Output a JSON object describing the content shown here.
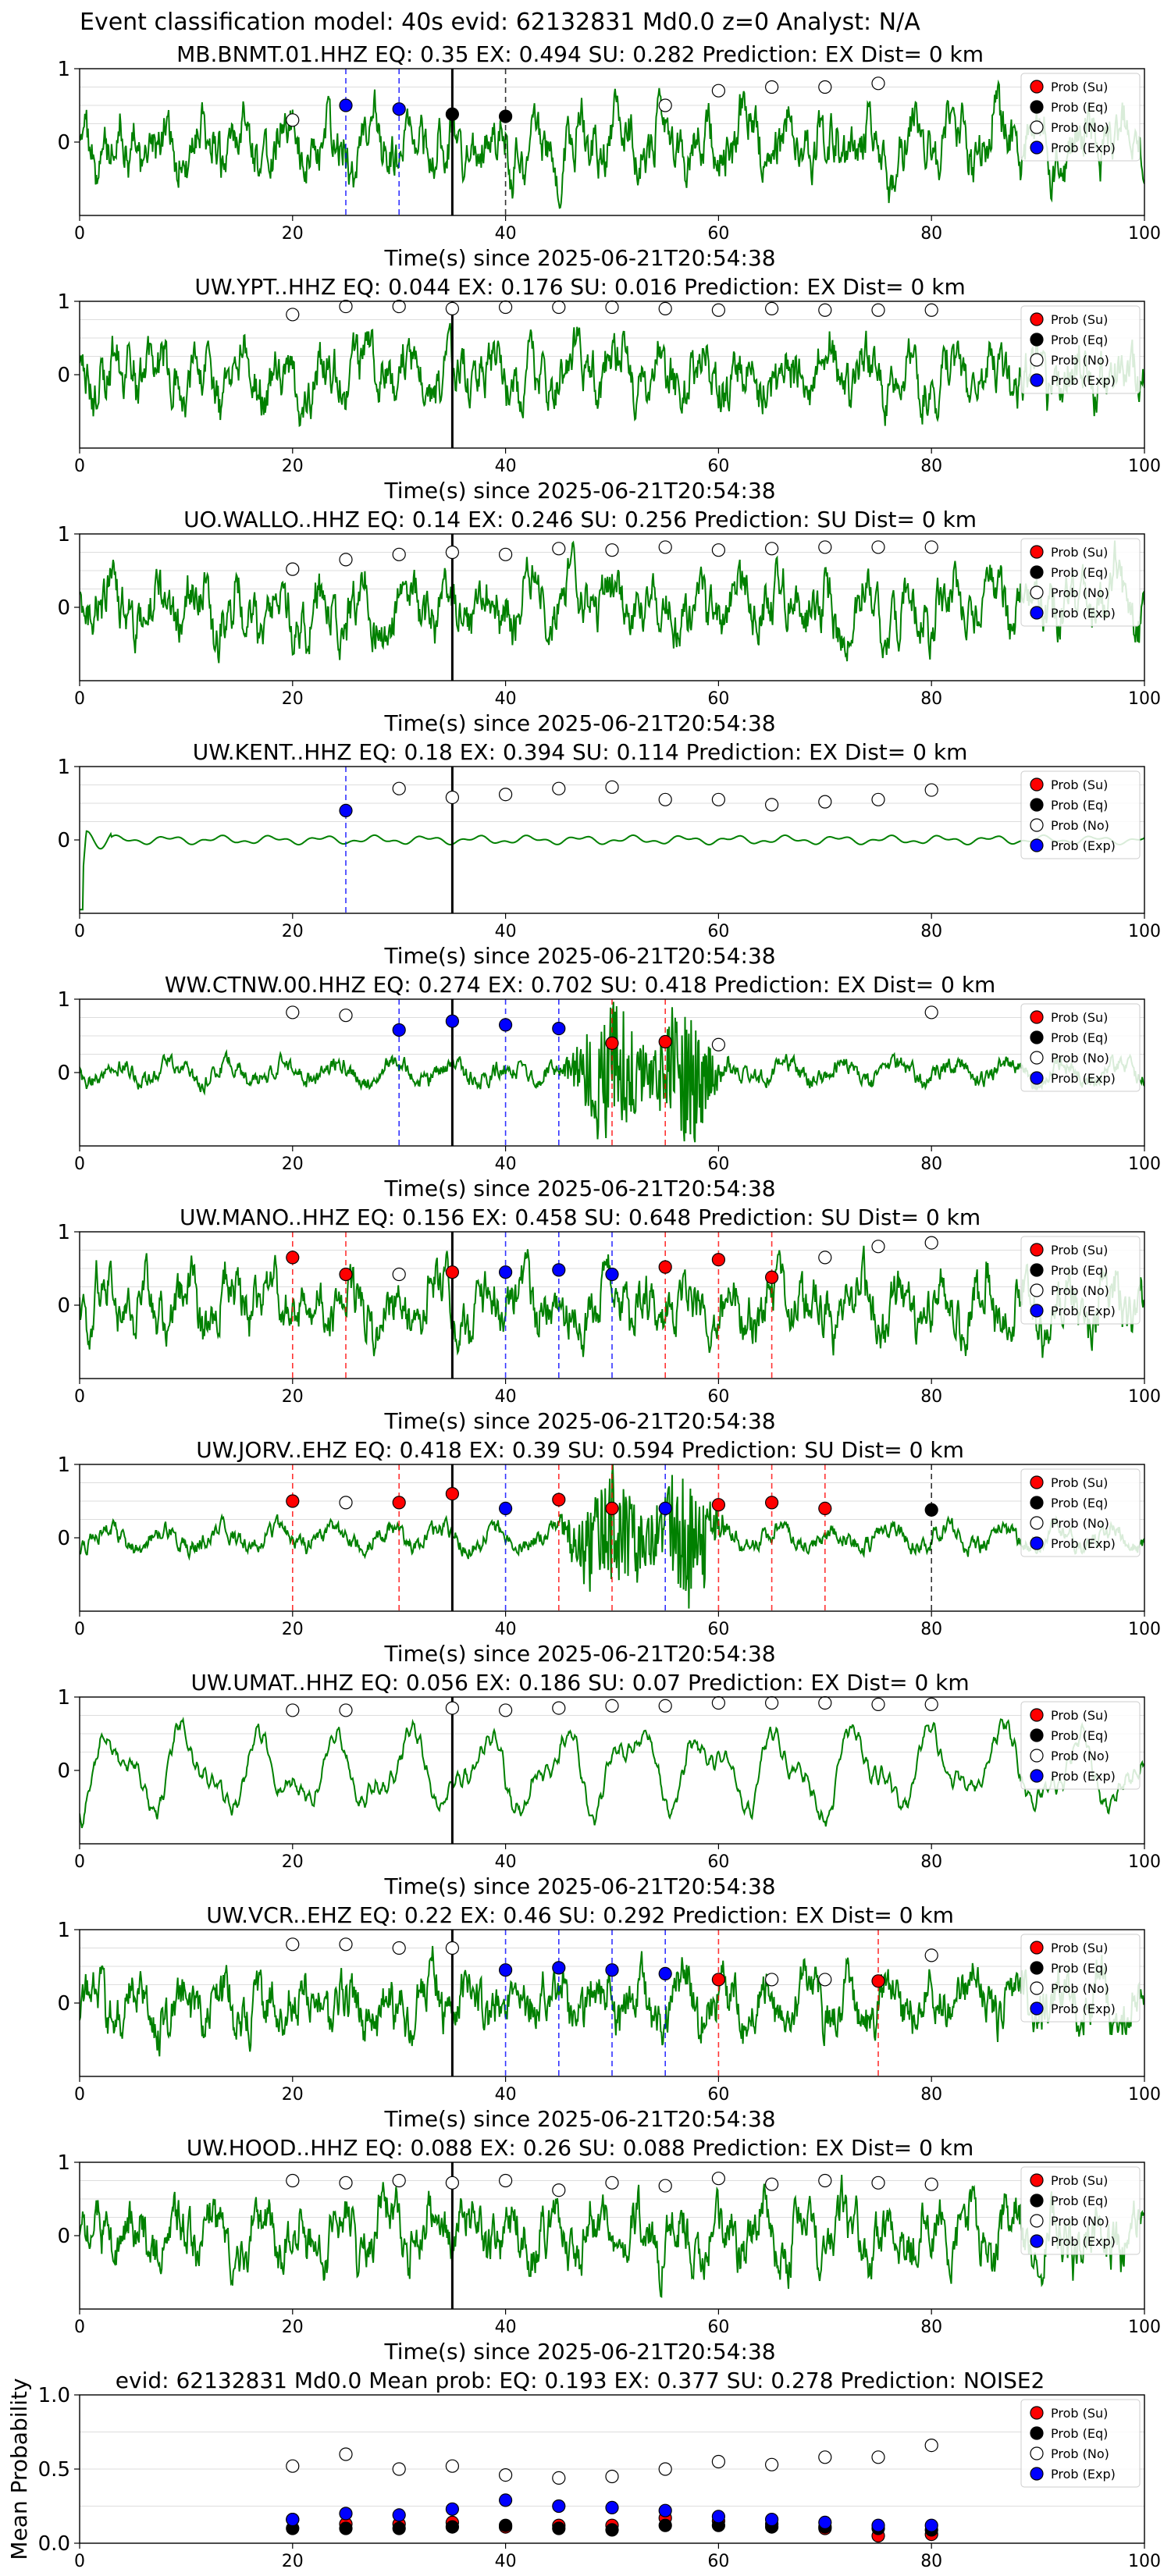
{
  "suptitle": "Event classification model: 40s evid: 62132831 Md0.0 z=0 Analyst: N/A",
  "colors": {
    "waveform": "#008000",
    "su": "#ff0000",
    "eq": "#000000",
    "no": "#ffffff",
    "exp": "#0000ff",
    "origin_line": "#000000"
  },
  "legend_labels": [
    "Prob (Su)",
    "Prob (Eq)",
    "Prob (No)",
    "Prob (Exp)"
  ],
  "chart_data": [
    {
      "type": "line",
      "title": "MB.BNMT.01.HHZ   EQ: 0.35   EX: 0.494   SU: 0.282   Prediction: EX    Dist= 0 km",
      "xlabel": "Time(s) since 2025-06-21T20:54:38",
      "xlim": [
        0,
        100
      ],
      "ylim": [
        -1,
        1
      ],
      "xticks": [
        0,
        20,
        40,
        60,
        80,
        100
      ],
      "yticks": [
        0,
        1
      ],
      "origin_time": 35,
      "legend": "right",
      "waveform_style": "noisy",
      "probabilities": [
        {
          "t": 20,
          "class": "No",
          "p": 0.3
        },
        {
          "t": 25,
          "class": "Exp",
          "p": 0.5
        },
        {
          "t": 30,
          "class": "Exp",
          "p": 0.45
        },
        {
          "t": 35,
          "class": "Eq",
          "p": 0.38
        },
        {
          "t": 40,
          "class": "Eq",
          "p": 0.35
        },
        {
          "t": 55,
          "class": "No",
          "p": 0.5
        },
        {
          "t": 60,
          "class": "No",
          "p": 0.7
        },
        {
          "t": 65,
          "class": "No",
          "p": 0.75
        },
        {
          "t": 70,
          "class": "No",
          "p": 0.75
        },
        {
          "t": 75,
          "class": "No",
          "p": 0.8
        }
      ]
    },
    {
      "type": "line",
      "title": "UW.YPT..HHZ   EQ: 0.044   EX: 0.176   SU: 0.016   Prediction: EX    Dist= 0 km",
      "xlabel": "Time(s) since 2025-06-21T20:54:38",
      "xlim": [
        0,
        100
      ],
      "ylim": [
        -1,
        1
      ],
      "xticks": [
        0,
        20,
        40,
        60,
        80,
        100
      ],
      "yticks": [
        0,
        1
      ],
      "origin_time": 35,
      "legend": "right",
      "waveform_style": "noisy",
      "probabilities": [
        {
          "t": 20,
          "class": "No",
          "p": 0.82
        },
        {
          "t": 25,
          "class": "No",
          "p": 0.93
        },
        {
          "t": 30,
          "class": "No",
          "p": 0.93
        },
        {
          "t": 35,
          "class": "No",
          "p": 0.9
        },
        {
          "t": 40,
          "class": "No",
          "p": 0.92
        },
        {
          "t": 45,
          "class": "No",
          "p": 0.92
        },
        {
          "t": 50,
          "class": "No",
          "p": 0.92
        },
        {
          "t": 55,
          "class": "No",
          "p": 0.9
        },
        {
          "t": 60,
          "class": "No",
          "p": 0.88
        },
        {
          "t": 65,
          "class": "No",
          "p": 0.9
        },
        {
          "t": 70,
          "class": "No",
          "p": 0.88
        },
        {
          "t": 75,
          "class": "No",
          "p": 0.88
        },
        {
          "t": 80,
          "class": "No",
          "p": 0.88
        }
      ]
    },
    {
      "type": "line",
      "title": "UO.WALLO..HHZ   EQ: 0.14   EX: 0.246   SU: 0.256   Prediction: SU    Dist= 0 km",
      "xlabel": "Time(s) since 2025-06-21T20:54:38",
      "xlim": [
        0,
        100
      ],
      "ylim": [
        -1,
        1
      ],
      "xticks": [
        0,
        20,
        40,
        60,
        80,
        100
      ],
      "yticks": [
        0,
        1
      ],
      "origin_time": 35,
      "legend": "right",
      "waveform_style": "noisy",
      "probabilities": [
        {
          "t": 20,
          "class": "No",
          "p": 0.52
        },
        {
          "t": 25,
          "class": "No",
          "p": 0.65
        },
        {
          "t": 30,
          "class": "No",
          "p": 0.72
        },
        {
          "t": 35,
          "class": "No",
          "p": 0.75
        },
        {
          "t": 40,
          "class": "No",
          "p": 0.72
        },
        {
          "t": 45,
          "class": "No",
          "p": 0.8
        },
        {
          "t": 50,
          "class": "No",
          "p": 0.78
        },
        {
          "t": 55,
          "class": "No",
          "p": 0.82
        },
        {
          "t": 60,
          "class": "No",
          "p": 0.78
        },
        {
          "t": 65,
          "class": "No",
          "p": 0.8
        },
        {
          "t": 70,
          "class": "No",
          "p": 0.82
        },
        {
          "t": 75,
          "class": "No",
          "p": 0.82
        },
        {
          "t": 80,
          "class": "No",
          "p": 0.82
        }
      ]
    },
    {
      "type": "line",
      "title": "UW.KENT..HHZ   EQ: 0.18   EX: 0.394   SU: 0.114   Prediction: EX    Dist= 0 km",
      "xlabel": "Time(s) since 2025-06-21T20:54:38",
      "xlim": [
        0,
        100
      ],
      "ylim": [
        -1,
        1
      ],
      "xticks": [
        0,
        20,
        40,
        60,
        80,
        100
      ],
      "yticks": [
        0,
        1
      ],
      "origin_time": 35,
      "legend": "right",
      "waveform_style": "quiet",
      "probabilities": [
        {
          "t": 25,
          "class": "Exp",
          "p": 0.4
        },
        {
          "t": 30,
          "class": "No",
          "p": 0.7
        },
        {
          "t": 35,
          "class": "No",
          "p": 0.58
        },
        {
          "t": 40,
          "class": "No",
          "p": 0.62
        },
        {
          "t": 45,
          "class": "No",
          "p": 0.7
        },
        {
          "t": 50,
          "class": "No",
          "p": 0.72
        },
        {
          "t": 55,
          "class": "No",
          "p": 0.55
        },
        {
          "t": 60,
          "class": "No",
          "p": 0.55
        },
        {
          "t": 65,
          "class": "No",
          "p": 0.48
        },
        {
          "t": 70,
          "class": "No",
          "p": 0.52
        },
        {
          "t": 75,
          "class": "No",
          "p": 0.55
        },
        {
          "t": 80,
          "class": "No",
          "p": 0.68
        }
      ]
    },
    {
      "type": "line",
      "title": "WW.CTNW.00.HHZ   EQ: 0.274   EX: 0.702   SU: 0.418   Prediction: EX    Dist= 0 km",
      "xlabel": "Time(s) since 2025-06-21T20:54:38",
      "xlim": [
        0,
        100
      ],
      "ylim": [
        -1,
        1
      ],
      "xticks": [
        0,
        20,
        40,
        60,
        80,
        100
      ],
      "yticks": [
        0,
        1
      ],
      "origin_time": 35,
      "legend": "right",
      "waveform_style": "burst",
      "probabilities": [
        {
          "t": 20,
          "class": "No",
          "p": 0.82
        },
        {
          "t": 25,
          "class": "No",
          "p": 0.78
        },
        {
          "t": 30,
          "class": "Exp",
          "p": 0.58
        },
        {
          "t": 35,
          "class": "Exp",
          "p": 0.7
        },
        {
          "t": 40,
          "class": "Exp",
          "p": 0.65
        },
        {
          "t": 45,
          "class": "Exp",
          "p": 0.6
        },
        {
          "t": 50,
          "class": "Su",
          "p": 0.4
        },
        {
          "t": 55,
          "class": "Su",
          "p": 0.42
        },
        {
          "t": 60,
          "class": "No",
          "p": 0.38
        },
        {
          "t": 80,
          "class": "No",
          "p": 0.82
        }
      ]
    },
    {
      "type": "line",
      "title": "UW.MANO..HHZ   EQ: 0.156   EX: 0.458   SU: 0.648   Prediction: SU    Dist= 0 km",
      "xlabel": "Time(s) since 2025-06-21T20:54:38",
      "xlim": [
        0,
        100
      ],
      "ylim": [
        -1,
        1
      ],
      "xticks": [
        0,
        20,
        40,
        60,
        80,
        100
      ],
      "yticks": [
        0,
        1
      ],
      "origin_time": 35,
      "legend": "right",
      "waveform_style": "noisy",
      "probabilities": [
        {
          "t": 20,
          "class": "Su",
          "p": 0.65
        },
        {
          "t": 25,
          "class": "Su",
          "p": 0.42
        },
        {
          "t": 30,
          "class": "No",
          "p": 0.42
        },
        {
          "t": 35,
          "class": "Su",
          "p": 0.45
        },
        {
          "t": 40,
          "class": "Exp",
          "p": 0.45
        },
        {
          "t": 45,
          "class": "Exp",
          "p": 0.48
        },
        {
          "t": 50,
          "class": "Exp",
          "p": 0.42
        },
        {
          "t": 55,
          "class": "Su",
          "p": 0.52
        },
        {
          "t": 60,
          "class": "Su",
          "p": 0.62
        },
        {
          "t": 65,
          "class": "Su",
          "p": 0.38
        },
        {
          "t": 70,
          "class": "No",
          "p": 0.65
        },
        {
          "t": 75,
          "class": "No",
          "p": 0.8
        },
        {
          "t": 80,
          "class": "No",
          "p": 0.85
        }
      ]
    },
    {
      "type": "line",
      "title": "UW.JORV..EHZ   EQ: 0.418   EX: 0.39   SU: 0.594   Prediction: SU    Dist= 0 km",
      "xlabel": "Time(s) since 2025-06-21T20:54:38",
      "xlim": [
        0,
        100
      ],
      "ylim": [
        -1,
        1
      ],
      "xticks": [
        0,
        20,
        40,
        60,
        80,
        100
      ],
      "yticks": [
        0,
        1
      ],
      "origin_time": 35,
      "legend": "right",
      "waveform_style": "burst",
      "probabilities": [
        {
          "t": 20,
          "class": "Su",
          "p": 0.5
        },
        {
          "t": 25,
          "class": "No",
          "p": 0.48
        },
        {
          "t": 30,
          "class": "Su",
          "p": 0.48
        },
        {
          "t": 35,
          "class": "Su",
          "p": 0.6
        },
        {
          "t": 40,
          "class": "Exp",
          "p": 0.4
        },
        {
          "t": 45,
          "class": "Su",
          "p": 0.52
        },
        {
          "t": 50,
          "class": "Su",
          "p": 0.4
        },
        {
          "t": 55,
          "class": "Exp",
          "p": 0.4
        },
        {
          "t": 60,
          "class": "Su",
          "p": 0.45
        },
        {
          "t": 65,
          "class": "Su",
          "p": 0.48
        },
        {
          "t": 70,
          "class": "Su",
          "p": 0.4
        },
        {
          "t": 80,
          "class": "Eq",
          "p": 0.38
        }
      ]
    },
    {
      "type": "line",
      "title": "UW.UMAT..HHZ   EQ: 0.056   EX: 0.186   SU: 0.07   Prediction: EX    Dist= 0 km",
      "xlabel": "Time(s) since 2025-06-21T20:54:38",
      "xlim": [
        0,
        100
      ],
      "ylim": [
        -1,
        1
      ],
      "xticks": [
        0,
        20,
        40,
        60,
        80,
        100
      ],
      "yticks": [
        0,
        1
      ],
      "origin_time": 35,
      "legend": "right",
      "waveform_style": "smooth",
      "probabilities": [
        {
          "t": 20,
          "class": "No",
          "p": 0.82
        },
        {
          "t": 25,
          "class": "No",
          "p": 0.82
        },
        {
          "t": 35,
          "class": "No",
          "p": 0.85
        },
        {
          "t": 40,
          "class": "No",
          "p": 0.82
        },
        {
          "t": 45,
          "class": "No",
          "p": 0.85
        },
        {
          "t": 50,
          "class": "No",
          "p": 0.88
        },
        {
          "t": 55,
          "class": "No",
          "p": 0.88
        },
        {
          "t": 60,
          "class": "No",
          "p": 0.92
        },
        {
          "t": 65,
          "class": "No",
          "p": 0.92
        },
        {
          "t": 70,
          "class": "No",
          "p": 0.92
        },
        {
          "t": 75,
          "class": "No",
          "p": 0.9
        },
        {
          "t": 80,
          "class": "No",
          "p": 0.9
        }
      ]
    },
    {
      "type": "line",
      "title": "UW.VCR..EHZ   EQ: 0.22   EX: 0.46   SU: 0.292   Prediction: EX    Dist= 0 km",
      "xlabel": "Time(s) since 2025-06-21T20:54:38",
      "xlim": [
        0,
        100
      ],
      "ylim": [
        -1,
        1
      ],
      "xticks": [
        0,
        20,
        40,
        60,
        80,
        100
      ],
      "yticks": [
        0,
        1
      ],
      "origin_time": 35,
      "legend": "right",
      "waveform_style": "noisy",
      "probabilities": [
        {
          "t": 20,
          "class": "No",
          "p": 0.8
        },
        {
          "t": 25,
          "class": "No",
          "p": 0.8
        },
        {
          "t": 30,
          "class": "No",
          "p": 0.75
        },
        {
          "t": 35,
          "class": "No",
          "p": 0.75
        },
        {
          "t": 40,
          "class": "Exp",
          "p": 0.45
        },
        {
          "t": 45,
          "class": "Exp",
          "p": 0.48
        },
        {
          "t": 50,
          "class": "Exp",
          "p": 0.45
        },
        {
          "t": 55,
          "class": "Exp",
          "p": 0.4
        },
        {
          "t": 60,
          "class": "Su",
          "p": 0.32
        },
        {
          "t": 65,
          "class": "No",
          "p": 0.32
        },
        {
          "t": 70,
          "class": "No",
          "p": 0.32
        },
        {
          "t": 75,
          "class": "Su",
          "p": 0.3
        },
        {
          "t": 80,
          "class": "No",
          "p": 0.65
        }
      ]
    },
    {
      "type": "line",
      "title": "UW.HOOD..HHZ   EQ: 0.088   EX: 0.26   SU: 0.088   Prediction: EX    Dist= 0 km",
      "xlabel": "Time(s) since 2025-06-21T20:54:38",
      "xlim": [
        0,
        100
      ],
      "ylim": [
        -1,
        1
      ],
      "xticks": [
        0,
        20,
        40,
        60,
        80,
        100
      ],
      "yticks": [
        0,
        1
      ],
      "origin_time": 35,
      "legend": "right",
      "waveform_style": "noisy",
      "probabilities": [
        {
          "t": 20,
          "class": "No",
          "p": 0.75
        },
        {
          "t": 25,
          "class": "No",
          "p": 0.72
        },
        {
          "t": 30,
          "class": "No",
          "p": 0.75
        },
        {
          "t": 35,
          "class": "No",
          "p": 0.72
        },
        {
          "t": 40,
          "class": "No",
          "p": 0.75
        },
        {
          "t": 45,
          "class": "No",
          "p": 0.62
        },
        {
          "t": 50,
          "class": "No",
          "p": 0.72
        },
        {
          "t": 55,
          "class": "No",
          "p": 0.68
        },
        {
          "t": 60,
          "class": "No",
          "p": 0.78
        },
        {
          "t": 65,
          "class": "No",
          "p": 0.7
        },
        {
          "t": 70,
          "class": "No",
          "p": 0.75
        },
        {
          "t": 75,
          "class": "No",
          "p": 0.72
        },
        {
          "t": 80,
          "class": "No",
          "p": 0.7
        }
      ]
    },
    {
      "type": "scatter",
      "title": "evid: 62132831  Md0.0   Mean prob:   EQ: 0.193   EX: 0.377   SU: 0.278   Prediction: NOISE2",
      "ylabel": "Mean Probability",
      "xlim": [
        0,
        100
      ],
      "ylim": [
        0,
        1
      ],
      "xticks": [
        0,
        20,
        40,
        60,
        80,
        100
      ],
      "yticks": [
        0.0,
        0.5,
        1.0
      ],
      "legend": "right",
      "x": [
        20,
        25,
        30,
        35,
        40,
        45,
        50,
        55,
        60,
        65,
        70,
        75,
        80
      ],
      "series": [
        {
          "name": "Prob (Su)",
          "values": [
            0.16,
            0.13,
            0.13,
            0.14,
            0.11,
            0.12,
            0.12,
            0.17,
            0.15,
            0.13,
            0.1,
            0.05,
            0.06
          ]
        },
        {
          "name": "Prob (Eq)",
          "values": [
            0.1,
            0.1,
            0.1,
            0.11,
            0.12,
            0.1,
            0.09,
            0.12,
            0.12,
            0.11,
            0.11,
            0.1,
            0.09
          ]
        },
        {
          "name": "Prob (No)",
          "values": [
            0.52,
            0.6,
            0.5,
            0.52,
            0.46,
            0.44,
            0.45,
            0.5,
            0.55,
            0.53,
            0.58,
            0.58,
            0.66
          ]
        },
        {
          "name": "Prob (Exp)",
          "values": [
            0.16,
            0.2,
            0.19,
            0.23,
            0.29,
            0.25,
            0.24,
            0.22,
            0.18,
            0.16,
            0.14,
            0.12,
            0.12
          ]
        }
      ]
    }
  ]
}
